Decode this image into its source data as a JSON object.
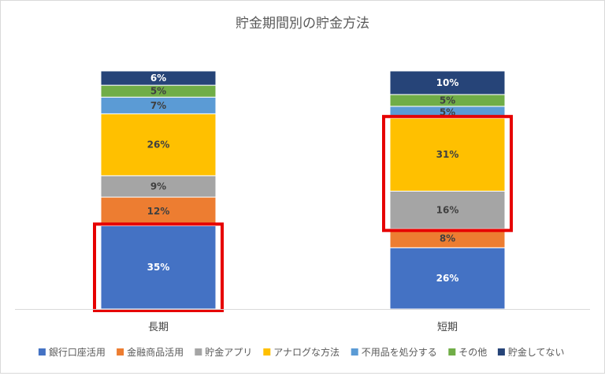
{
  "chart_data": {
    "type": "bar",
    "stacked": true,
    "normalized": true,
    "title": "貯金期間別の貯金方法",
    "categories": [
      "長期",
      "短期"
    ],
    "series": [
      {
        "name": "銀行口座活用",
        "color": "#4472c4",
        "values": [
          35,
          26
        ],
        "labels": [
          "35%",
          "26%"
        ],
        "label_color": "#ffffff"
      },
      {
        "name": "金融商品活用",
        "color": "#ed7d31",
        "values": [
          12,
          8
        ],
        "labels": [
          "12%",
          "8%"
        ],
        "label_color": "#404040"
      },
      {
        "name": "貯金アプリ",
        "color": "#a5a5a5",
        "values": [
          9,
          16
        ],
        "labels": [
          "9%",
          "16%"
        ],
        "label_color": "#404040"
      },
      {
        "name": "アナログな方法",
        "color": "#ffc000",
        "values": [
          26,
          31
        ],
        "labels": [
          "26%",
          "31%"
        ],
        "label_color": "#404040"
      },
      {
        "name": "不用品を処分する",
        "color": "#5b9bd5",
        "values": [
          7,
          5
        ],
        "labels": [
          "7%",
          "5%"
        ],
        "label_color": "#404040"
      },
      {
        "name": "その他",
        "color": "#70ad47",
        "values": [
          5,
          5
        ],
        "labels": [
          "5%",
          "5%"
        ],
        "label_color": "#404040"
      },
      {
        "name": "貯金してない",
        "color": "#264478",
        "values": [
          6,
          10
        ],
        "labels": [
          "6%",
          "10%"
        ],
        "label_color": "#ffffff"
      }
    ],
    "highlights": [
      {
        "category": 0,
        "series": [
          "銀行口座活用"
        ],
        "color": "#e60000"
      },
      {
        "category": 1,
        "series": [
          "貯金アプリ",
          "アナログな方法"
        ],
        "color": "#e60000"
      }
    ],
    "legend_position": "bottom",
    "grid": false
  }
}
